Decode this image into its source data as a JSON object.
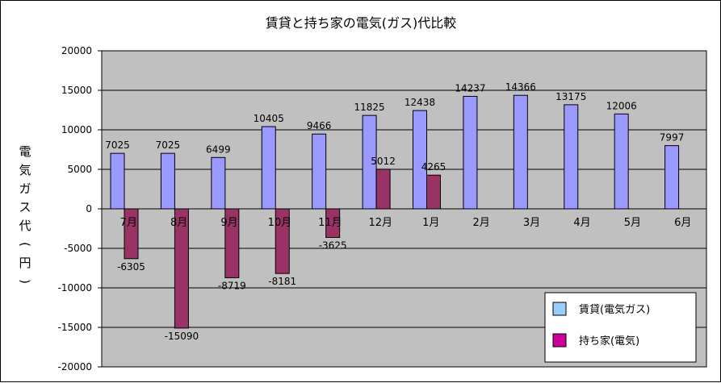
{
  "chart_data": {
    "type": "bar",
    "title": "賃貸と持ち家の電気(ガス)代比較",
    "ylabel": "電気ガス代(円)",
    "xlabel": "",
    "categories": [
      "7月",
      "8月",
      "9月",
      "10月",
      "11月",
      "12月",
      "1月",
      "2月",
      "3月",
      "4月",
      "5月",
      "6月"
    ],
    "series": [
      {
        "name": "賃貸(電気ガス)",
        "color": "#9999ff",
        "values": [
          7025,
          7025,
          6499,
          10405,
          9466,
          11825,
          12438,
          14237,
          14366,
          13175,
          12006,
          7997
        ]
      },
      {
        "name": "持ち家(電気)",
        "color": "#993366",
        "values": [
          -6305,
          -15090,
          -8719,
          -8181,
          -3625,
          5012,
          4265,
          null,
          null,
          null,
          null,
          null
        ]
      }
    ],
    "ylim": [
      -20000,
      20000
    ],
    "yticks": [
      20000,
      15000,
      10000,
      5000,
      0,
      -5000,
      -10000,
      -15000,
      -20000
    ],
    "grid": true,
    "legend_position": "bottom-right",
    "plot_background": "#c0c0c0",
    "legend_swatch_colors": [
      "#99ccff",
      "#cc0099"
    ]
  }
}
